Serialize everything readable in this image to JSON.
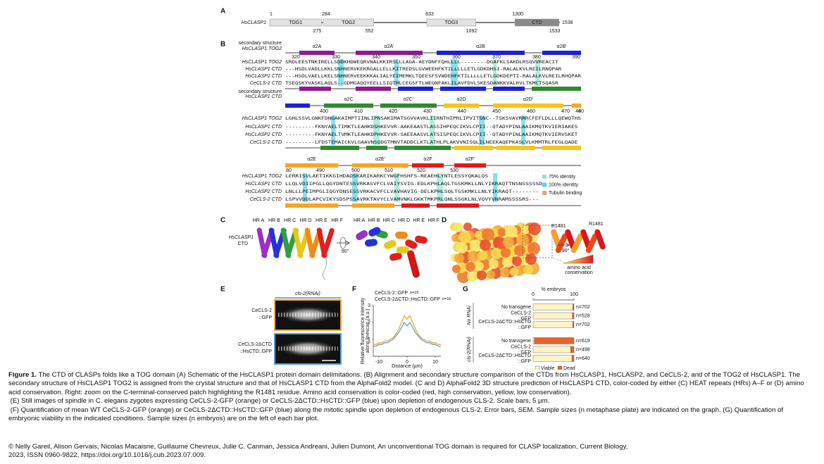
{
  "panel_a": {
    "label": "A",
    "protein": "HsCLASP1",
    "length": 1538,
    "domains": [
      {
        "name": "TOG1",
        "start": 1,
        "end": 275
      },
      {
        "name": "TOG2",
        "start": 284,
        "end": 552
      },
      {
        "name": "TOG3",
        "start": 833,
        "end": 1092
      },
      {
        "name": "CTD",
        "start": 1300,
        "end": 1533
      }
    ]
  },
  "panel_b": {
    "label": "B",
    "ss_top_label": [
      "secondary structure",
      "HsCLASP1 TOG2"
    ],
    "ss_bottom_label": [
      "secondary structure",
      "HsCLASP1 CTD"
    ],
    "helix_colors": [
      "#8e1c8e",
      "#1f1fd6",
      "#2e8b2e",
      "#f5c518",
      "#f5a623",
      "#e41a1c"
    ],
    "blocks": [
      {
        "helices": [
          "α2A",
          "α2A'",
          "α2B",
          "α2B'"
        ],
        "ruler": [
          320,
          330,
          340,
          350,
          360,
          370,
          380,
          390
        ],
        "rows": [
          {
            "name": "HsCLASP1 TOG2",
            "seq": "SRDLEESTNKIRELLSDDKHDWEQRVNALKKIRSLLLAGA-AEYDNFFQHLLLL--------DGAFKLSAKDLRSQVVREACIT"
          },
          {
            "name": "HsCLASP1 CTD",
            "seq": "---HSDLVADLLKKLSNHNERVKEKRGALLELLKITREDSLGVWEEHFKTILLLLLETLGDKDHSI-RALALKVLREILRNQPAR"
          },
          {
            "name": "HsCLASP2 CTD",
            "seq": "---HSDLVAELLKELSNHNERVEEKKKALIALYEIMEMKLTQEESFSVWDEHFKTILLLLLETLGDKDEPTI-RALALKVLREILRHQPAR"
          },
          {
            "name": "CeCLS-2 CTD",
            "seq": "TSEQSKYVASKLAQLS--GDMGAQQYEELLSIQTMLCEGSFTLWEQNFAKLILAVFDVLSKESDANKKVALRVLTKMCTSQASR"
          }
        ]
      },
      {
        "helices": [
          "α2C",
          "α2C'",
          "α2D",
          "α2D'"
        ],
        "ruler": [
          400,
          410,
          420,
          430,
          440,
          450,
          460,
          470,
          480,
          4
        ],
        "rows": [
          {
            "name": "HsCLASP1 TOG2",
            "seq": "LGHLSSVLGNKFDNGAKAIMPTIINLIPNSAKIMATSGVVAVKLIIRNTHIPRLIPVITSNC--TSKSVAVRRRCFEFLDLLLQEWQTHS"
          },
          {
            "name": "HsCLASP1 CTD",
            "seq": "---------FKNYAELTIMKTLEAHKDSHKEVVR-AAKEAASTLASSIHPEQCIKVLCPII--QTADYPINLAAIKMQTKVIERIAKES"
          },
          {
            "name": "HsCLASP2 CTD",
            "seq": "---------FKNYAELTVMKTLEAHKDPHKEVVR-SAEEAASVLATSISPEQCIKVLCPII--QTADYPINLAAIKMQTKVIERVSKET"
          },
          {
            "name": "CeCLS-2 CTD",
            "seq": "---------LFDSTEMAICKVLGAAVNSQDGTMNVTADDCLKTLATHLPLAKVVNISQLILNEEKAQEPKASLVLKMMTRLFEGLQADE"
          }
        ]
      },
      {
        "helices": [
          "α2E",
          "α2E'",
          "α2F",
          "α2F'"
        ],
        "ruler": [
          80,
          490,
          500,
          510,
          520,
          530
        ],
        "rows": [
          {
            "name": "HsCLASP1 TOG2",
            "seq": "LERRISVLAETIKKGIHDADSKARIKARKCYWGFHSHFS-REAEHLYNTLESSYQKALQS"
          },
          {
            "name": "HsCLASP1 CTD",
            "seq": "LLQLVDIIPGLLQGYDNTESSVRKASVFCLVAIYSVIG-EDLKPHLAQLTGSKMKLLNLYIKRAQTTNSNSSSSSD"
          },
          {
            "name": "HsCLASP2 CTD",
            "seq": "LNLLLPEIMPGLIQGYDNSESSVRKACVFCLVAVHAVIG-DELKPHLSQLTGSKMKLLNLYIKRAQT--------"
          },
          {
            "name": "CeCLS-2 CTD",
            "seq": "LSPVVDDLAPCVIKYSDSPSSAVRKTAVYCLVAMVNKLGKKTMKPRLQNLSSGKLNLVQVYVNRAMSSSSRS---"
          }
        ]
      }
    ],
    "legend": [
      {
        "name": "75% identity",
        "color": "#8fe6cf"
      },
      {
        "name": "100% identity",
        "color": "#56d3e6"
      },
      {
        "name": "Tubulin binding",
        "color": "#d9a58a"
      }
    ]
  },
  "panel_c": {
    "label": "C",
    "helix_labels": [
      "HR A",
      "HR B",
      "HR C",
      "HR D",
      "HR E",
      "HR F"
    ],
    "name": [
      "HsCLASP1",
      "CTD"
    ],
    "rotation": "90°"
  },
  "panel_d": {
    "label": "D",
    "residue": "R1481",
    "rotation": "90°",
    "scale_label": [
      "amino acid",
      "conservation"
    ]
  },
  "panel_e": {
    "label": "E",
    "condition": "cls-2(RNAi)",
    "rows": [
      [
        "CeCLS-2",
        "::GFP"
      ],
      [
        "CeCLS-2ΔCTD",
        "::HsCTD::GFP"
      ]
    ]
  },
  "panel_f": {
    "label": "F",
    "type": "line",
    "x_label": "Distance (µm)",
    "y_label": [
      "Relative fluorescence intensity",
      "along linescan (a.u.)"
    ],
    "x": [
      -12,
      -11,
      -10,
      -9,
      -8,
      -7,
      -6,
      -5,
      -4,
      -3,
      -2,
      -1,
      0,
      1,
      2,
      3,
      4,
      5,
      6,
      7,
      8,
      9,
      10,
      11,
      12
    ],
    "series": [
      {
        "name": "CeCLS-2::GFP",
        "n_label": "n=15",
        "color": "#f0a830",
        "values": [
          0.7,
          0.7,
          0.8,
          0.8,
          0.9,
          0.9,
          1.0,
          1.1,
          1.3,
          1.6,
          2.0,
          2.4,
          2.2,
          2.4,
          2.0,
          1.6,
          1.3,
          1.1,
          1.0,
          0.9,
          0.9,
          0.8,
          0.8,
          0.7,
          0.7
        ]
      },
      {
        "name": "CeCLS-2ΔCTD::HsCTD::GFP",
        "n_label": "n=16",
        "color": "#5aa0e0",
        "values": [
          0.6,
          0.6,
          0.7,
          0.7,
          0.8,
          0.8,
          0.9,
          1.0,
          1.2,
          1.4,
          1.7,
          2.0,
          1.8,
          2.0,
          1.7,
          1.4,
          1.2,
          1.0,
          0.9,
          0.8,
          0.8,
          0.7,
          0.7,
          0.6,
          0.6
        ]
      }
    ],
    "xlim": [
      -12,
      12
    ],
    "xticks": [
      -10,
      0,
      10
    ],
    "ylim": [
      0,
      3
    ],
    "yticks": [
      1,
      2,
      3
    ]
  },
  "panel_g": {
    "label": "G",
    "type": "bar",
    "x_label": "% embryos",
    "xlim": [
      0,
      100
    ],
    "xticks": [
      0,
      100
    ],
    "groups": [
      {
        "name": "No RNAi",
        "categories": [
          [
            "No transgene"
          ],
          [
            "CeCLS-2",
            "::GFP"
          ],
          [
            "CeCLS-2ΔCTD::HsCTD",
            "::GFP"
          ]
        ],
        "n_labels": [
          "n=702",
          "n=528",
          "n=702"
        ]
      },
      {
        "name": "cls-2(RNAi)",
        "categories": [
          [
            "No transgene"
          ],
          [
            "CeCLS-2",
            "::GFP"
          ],
          [
            "CeCLS-2ΔCTD::HsCTD",
            "::GFP"
          ]
        ],
        "n_labels": [
          "n=619",
          "n=498",
          "n=640"
        ]
      }
    ],
    "series": [
      {
        "name": "Viable",
        "color": "#fdf5c9",
        "values": [
          97,
          96,
          97,
          3,
          92,
          95
        ]
      },
      {
        "name": "Dead",
        "color": "#e8622a",
        "values": [
          3,
          4,
          3,
          97,
          8,
          5
        ]
      }
    ]
  },
  "caption": {
    "figure_label": "Figure 1.",
    "paragraphs": [
      "The CTD of CLASPs folds like a TOG domain (A) Schematic of the HsCLASP1 protein domain delimitations. (B) Alignment and secondary structure comparison of the CTDs from HsCLASP1, HsCLASP2, and CeCLS-2, and of the TOG2 of HsCLASP1. The secondary structure of HsCLASP1 TOG2 is assigned from the crystal structure and that of HsCLASP1 CTD from the AlphaFold2 model. (C and D) AlphaFold2 3D structure prediction of HsCLASP1 CTD, color-coded by either (C) HEAT repeats (HRs) A–F or (D) amino acid conservation. Right: zoom on the C-terminal-conserved patch highlighting the R1481 residue. Amino acid conservation is color-coded (red, high conservation, yellow, low conservation).",
      "(E) Still images of spindle in C. elegans zygotes expressing CeCLS-2-GFP (orange) or CeCLS-2ΔCTD::HsCTD::GFP (blue) upon depletion of endogenous CLS-2. Scale bars, 5 μm.",
      "(F) Quantification of mean WT CeCLS-2-GFP (orange) or CeCLS-2ΔCTD::HsCTD::GFP (blue) along the mitotic spindle upon depletion of endogenous CLS-2. Error bars, SEM. Sample sizes (n metaphase plate) are indicated on the graph. (G) Quantification of embryonic viability in the indicated conditions. Sample sizes (n embryos) are on the left of each bar plot."
    ],
    "citation": [
      "© Nelly Gareil, Alison Gervais, Nicolas Macaisne, Guillaume Chevreux, Julie C. Canman, Jessica Andreani, Julien Dumont, An unconventional TOG domain is required for CLASP localization, Current Biology,",
      "2023, ISSN 0960-9822, https://doi.org/10.1016/j.cub.2023.07.009."
    ]
  }
}
